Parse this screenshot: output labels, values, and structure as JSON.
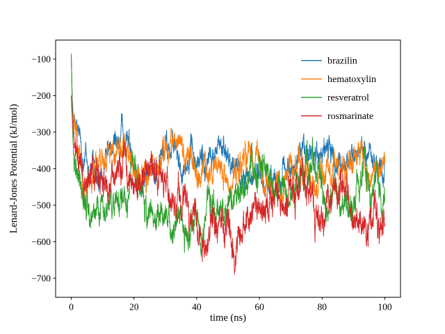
{
  "figure": {
    "background": "#ffffff"
  },
  "chart_data": {
    "type": "line",
    "title": "",
    "xlabel": "time (ns)",
    "ylabel": "Lenard-Jones Potential (kJ/mol)",
    "xlim": [
      -5,
      105
    ],
    "ylim": [
      -752,
      -48
    ],
    "xticks": [
      0,
      20,
      40,
      60,
      80,
      100
    ],
    "yticks": [
      -700,
      -600,
      -500,
      -400,
      -300,
      -200,
      -100
    ],
    "grid": false,
    "legend_position": "upper right",
    "points_per_series": 2500,
    "series": [
      {
        "name": "brazilin",
        "color": "#1f77b4",
        "seed": 12345,
        "amplitude": 58,
        "mean_points": [
          [
            0,
            -90
          ],
          [
            0.4,
            -240
          ],
          [
            1.5,
            -320
          ],
          [
            4,
            -350
          ],
          [
            10,
            -360
          ],
          [
            20,
            -355
          ],
          [
            30,
            -370
          ],
          [
            38,
            -385
          ],
          [
            50,
            -400
          ],
          [
            60,
            -395
          ],
          [
            70,
            -390
          ],
          [
            80,
            -390
          ],
          [
            90,
            -385
          ],
          [
            100,
            -390
          ]
        ]
      },
      {
        "name": "hematoxylin",
        "color": "#ff7f0e",
        "seed": 67890,
        "amplitude": 62,
        "mean_points": [
          [
            0,
            -100
          ],
          [
            0.4,
            -250
          ],
          [
            1.5,
            -340
          ],
          [
            4,
            -370
          ],
          [
            10,
            -380
          ],
          [
            20,
            -370
          ],
          [
            30,
            -385
          ],
          [
            40,
            -400
          ],
          [
            50,
            -420
          ],
          [
            60,
            -415
          ],
          [
            70,
            -405
          ],
          [
            80,
            -410
          ],
          [
            90,
            -405
          ],
          [
            100,
            -400
          ]
        ]
      },
      {
        "name": "resveratrol",
        "color": "#2ca02c",
        "seed": 24680,
        "amplitude": 68,
        "mean_points": [
          [
            0,
            -85
          ],
          [
            0.4,
            -280
          ],
          [
            1.5,
            -380
          ],
          [
            4,
            -460
          ],
          [
            8,
            -500
          ],
          [
            14,
            -490
          ],
          [
            20,
            -470
          ],
          [
            26,
            -530
          ],
          [
            32,
            -545
          ],
          [
            38,
            -530
          ],
          [
            44,
            -510
          ],
          [
            50,
            -480
          ],
          [
            56,
            -465
          ],
          [
            62,
            -450
          ],
          [
            70,
            -450
          ],
          [
            80,
            -455
          ],
          [
            90,
            -460
          ],
          [
            100,
            -450
          ]
        ]
      },
      {
        "name": "rosmarinate",
        "color": "#d62728",
        "seed": 13579,
        "amplitude": 72,
        "mean_points": [
          [
            0,
            -200
          ],
          [
            0.4,
            -300
          ],
          [
            1.5,
            -380
          ],
          [
            4,
            -420
          ],
          [
            8,
            -410
          ],
          [
            14,
            -440
          ],
          [
            20,
            -445
          ],
          [
            26,
            -485
          ],
          [
            32,
            -505
          ],
          [
            38,
            -525
          ],
          [
            44,
            -555
          ],
          [
            49,
            -600
          ],
          [
            52,
            -615
          ],
          [
            55,
            -570
          ],
          [
            58,
            -535
          ],
          [
            64,
            -520
          ],
          [
            70,
            -515
          ],
          [
            76,
            -520
          ],
          [
            82,
            -505
          ],
          [
            88,
            -505
          ],
          [
            94,
            -500
          ],
          [
            100,
            -505
          ]
        ]
      }
    ]
  }
}
